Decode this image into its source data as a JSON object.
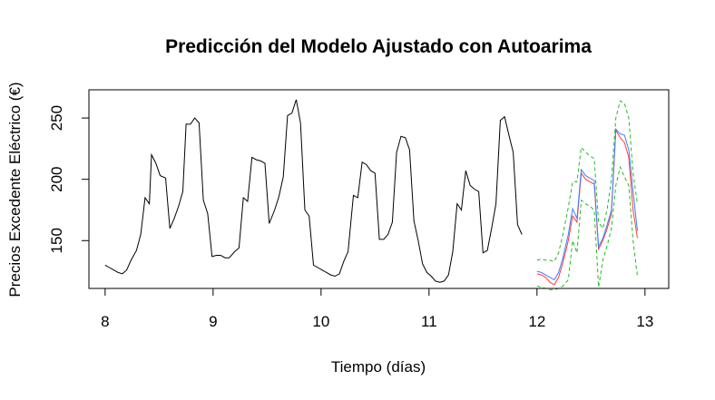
{
  "chart_data": {
    "type": "line",
    "title": "Predicción del Modelo Ajustado con Autoarima",
    "xlabel": "Tiempo (días)",
    "ylabel": "Precios Excedente Eléctrico (€)",
    "xlim": [
      7.85,
      13.22
    ],
    "ylim": [
      111,
      273
    ],
    "x_ticks": [
      8,
      9,
      10,
      11,
      12,
      13
    ],
    "y_ticks": [
      150,
      200,
      250
    ],
    "grid": false,
    "legend": "none",
    "series": [
      {
        "color": "#000000",
        "style": "solid",
        "points": [
          [
            8.0,
            130
          ],
          [
            8.04,
            128
          ],
          [
            8.08,
            126
          ],
          [
            8.12,
            124
          ],
          [
            8.16,
            123
          ],
          [
            8.2,
            126
          ],
          [
            8.24,
            134
          ],
          [
            8.29,
            142
          ],
          [
            8.33,
            155
          ],
          [
            8.37,
            185
          ],
          [
            8.41,
            180
          ],
          [
            8.43,
            220
          ],
          [
            8.47,
            213
          ],
          [
            8.51,
            203
          ],
          [
            8.56,
            201
          ],
          [
            8.6,
            160
          ],
          [
            8.64,
            168
          ],
          [
            8.68,
            178
          ],
          [
            8.72,
            190
          ],
          [
            8.75,
            245
          ],
          [
            8.79,
            245
          ],
          [
            8.83,
            250
          ],
          [
            8.87,
            246
          ],
          [
            8.91,
            183
          ],
          [
            8.95,
            172
          ],
          [
            8.99,
            137
          ],
          [
            9.03,
            138
          ],
          [
            9.07,
            138
          ],
          [
            9.11,
            136
          ],
          [
            9.15,
            136
          ],
          [
            9.2,
            141
          ],
          [
            9.24,
            144
          ],
          [
            9.28,
            185
          ],
          [
            9.32,
            182
          ],
          [
            9.36,
            218
          ],
          [
            9.4,
            216
          ],
          [
            9.44,
            215
          ],
          [
            9.48,
            213
          ],
          [
            9.52,
            164
          ],
          [
            9.57,
            175
          ],
          [
            9.61,
            186
          ],
          [
            9.65,
            202
          ],
          [
            9.69,
            252
          ],
          [
            9.73,
            254
          ],
          [
            9.77,
            265
          ],
          [
            9.81,
            246
          ],
          [
            9.85,
            175
          ],
          [
            9.89,
            170
          ],
          [
            9.93,
            130
          ],
          [
            9.97,
            128
          ],
          [
            10.01,
            126
          ],
          [
            10.05,
            124
          ],
          [
            10.09,
            122
          ],
          [
            10.13,
            121
          ],
          [
            10.17,
            123
          ],
          [
            10.21,
            133
          ],
          [
            10.25,
            141
          ],
          [
            10.3,
            187
          ],
          [
            10.34,
            185
          ],
          [
            10.38,
            214
          ],
          [
            10.42,
            212
          ],
          [
            10.46,
            207
          ],
          [
            10.5,
            205
          ],
          [
            10.54,
            151
          ],
          [
            10.58,
            151
          ],
          [
            10.62,
            155
          ],
          [
            10.66,
            165
          ],
          [
            10.7,
            222
          ],
          [
            10.74,
            235
          ],
          [
            10.78,
            234
          ],
          [
            10.82,
            224
          ],
          [
            10.86,
            166
          ],
          [
            10.9,
            150
          ],
          [
            10.94,
            131
          ],
          [
            10.98,
            124
          ],
          [
            11.02,
            121
          ],
          [
            11.06,
            117
          ],
          [
            11.1,
            116
          ],
          [
            11.14,
            117
          ],
          [
            11.18,
            122
          ],
          [
            11.22,
            141
          ],
          [
            11.26,
            180
          ],
          [
            11.3,
            175
          ],
          [
            11.34,
            207
          ],
          [
            11.38,
            195
          ],
          [
            11.42,
            192
          ],
          [
            11.46,
            190
          ],
          [
            11.5,
            140
          ],
          [
            11.54,
            142
          ],
          [
            11.58,
            160
          ],
          [
            11.62,
            180
          ],
          [
            11.66,
            248
          ],
          [
            11.7,
            251
          ],
          [
            11.74,
            236
          ],
          [
            11.78,
            222
          ],
          [
            11.82,
            163
          ],
          [
            11.86,
            155
          ]
        ]
      },
      {
        "color": "#ff3b3b",
        "style": "solid",
        "points": [
          [
            12.0,
            123
          ],
          [
            12.04,
            122
          ],
          [
            12.08,
            120
          ],
          [
            12.12,
            116
          ],
          [
            12.16,
            114
          ],
          [
            12.2,
            120
          ],
          [
            12.24,
            132
          ],
          [
            12.29,
            150
          ],
          [
            12.33,
            170
          ],
          [
            12.37,
            165
          ],
          [
            12.41,
            205
          ],
          [
            12.45,
            200
          ],
          [
            12.49,
            198
          ],
          [
            12.53,
            196
          ],
          [
            12.57,
            143
          ],
          [
            12.61,
            150
          ],
          [
            12.65,
            160
          ],
          [
            12.69,
            172
          ],
          [
            12.73,
            240
          ],
          [
            12.77,
            234
          ],
          [
            12.81,
            230
          ],
          [
            12.85,
            218
          ],
          [
            12.89,
            175
          ],
          [
            12.93,
            152
          ]
        ]
      },
      {
        "color": "#3f7fff",
        "style": "solid",
        "points": [
          [
            12.0,
            125
          ],
          [
            12.04,
            124
          ],
          [
            12.08,
            122
          ],
          [
            12.12,
            120
          ],
          [
            12.16,
            118
          ],
          [
            12.2,
            124
          ],
          [
            12.24,
            136
          ],
          [
            12.29,
            155
          ],
          [
            12.33,
            176
          ],
          [
            12.37,
            168
          ],
          [
            12.41,
            208
          ],
          [
            12.45,
            203
          ],
          [
            12.49,
            201
          ],
          [
            12.53,
            199
          ],
          [
            12.57,
            145
          ],
          [
            12.61,
            152
          ],
          [
            12.65,
            163
          ],
          [
            12.69,
            175
          ],
          [
            12.73,
            241
          ],
          [
            12.77,
            237
          ],
          [
            12.81,
            236
          ],
          [
            12.85,
            224
          ],
          [
            12.89,
            190
          ],
          [
            12.93,
            158
          ]
        ]
      },
      {
        "color": "#22bb22",
        "style": "dashed",
        "points": [
          [
            12.0,
            134
          ],
          [
            12.04,
            135
          ],
          [
            12.08,
            134
          ],
          [
            12.12,
            134
          ],
          [
            12.16,
            133
          ],
          [
            12.2,
            140
          ],
          [
            12.24,
            155
          ],
          [
            12.29,
            177
          ],
          [
            12.33,
            198
          ],
          [
            12.37,
            198
          ],
          [
            12.41,
            226
          ],
          [
            12.45,
            222
          ],
          [
            12.49,
            219
          ],
          [
            12.53,
            217
          ],
          [
            12.57,
            165
          ],
          [
            12.61,
            160
          ],
          [
            12.65,
            176
          ],
          [
            12.69,
            200
          ],
          [
            12.73,
            250
          ],
          [
            12.77,
            264
          ],
          [
            12.81,
            262
          ],
          [
            12.85,
            250
          ],
          [
            12.89,
            205
          ],
          [
            12.93,
            180
          ]
        ]
      },
      {
        "color": "#22bb22",
        "style": "dashed",
        "points": [
          [
            12.0,
            113
          ],
          [
            12.04,
            112
          ],
          [
            12.08,
            111
          ],
          [
            12.12,
            110
          ],
          [
            12.16,
            110
          ],
          [
            12.2,
            111
          ],
          [
            12.24,
            113
          ],
          [
            12.29,
            118
          ],
          [
            12.33,
            150
          ],
          [
            12.37,
            140
          ],
          [
            12.41,
            183
          ],
          [
            12.45,
            180
          ],
          [
            12.49,
            178
          ],
          [
            12.53,
            175
          ],
          [
            12.57,
            112
          ],
          [
            12.61,
            134
          ],
          [
            12.65,
            146
          ],
          [
            12.69,
            160
          ],
          [
            12.73,
            195
          ],
          [
            12.77,
            210
          ],
          [
            12.81,
            202
          ],
          [
            12.85,
            195
          ],
          [
            12.89,
            150
          ],
          [
            12.93,
            121
          ]
        ]
      }
    ]
  }
}
